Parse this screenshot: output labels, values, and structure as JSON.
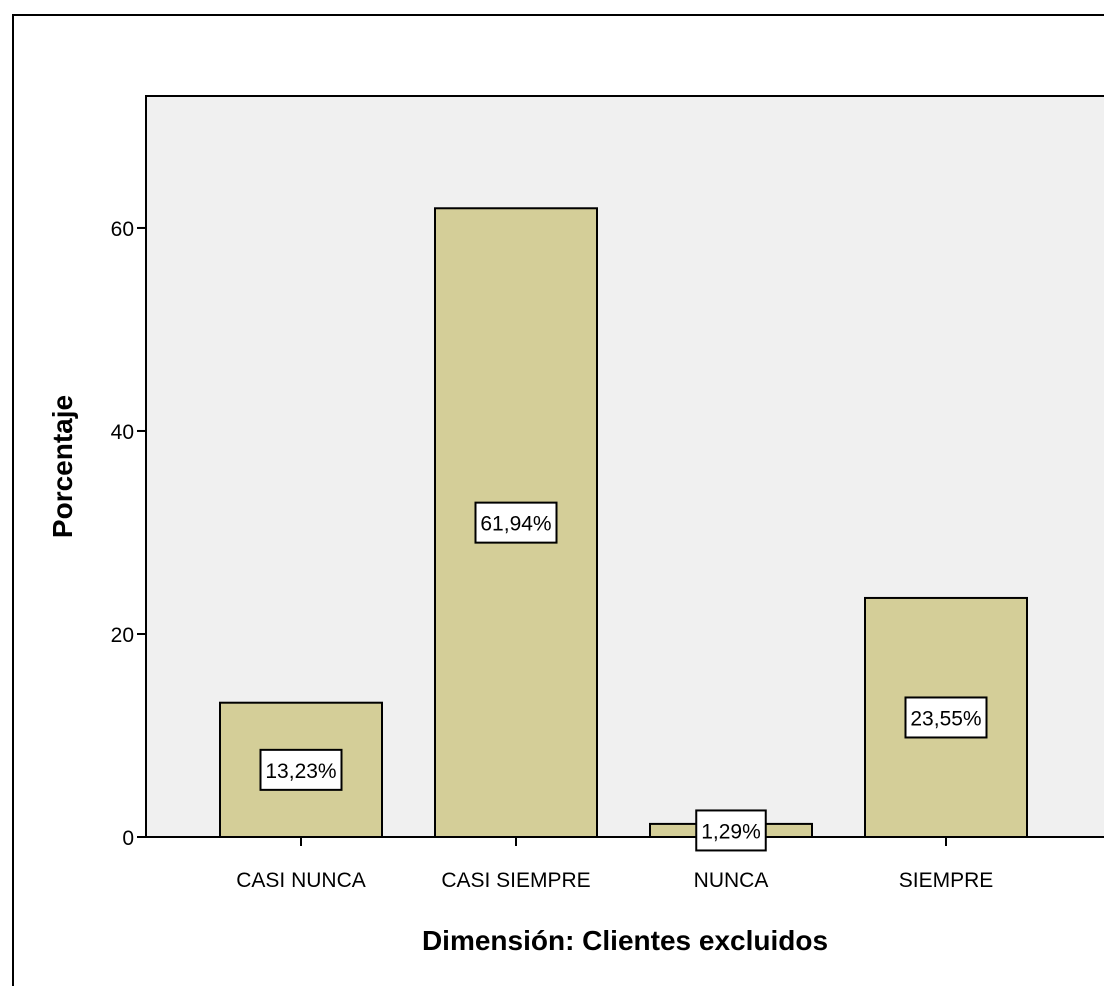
{
  "chart_data": {
    "type": "bar",
    "categories": [
      "CASI NUNCA",
      "CASI SIEMPRE",
      "NUNCA",
      "SIEMPRE"
    ],
    "values": [
      13.23,
      61.94,
      1.29,
      23.55
    ],
    "data_labels": [
      "13,23%",
      "61,94%",
      "1,29%",
      "23,55%"
    ],
    "xlabel": "Dimensión: Clientes excluidos",
    "ylabel": "Porcentaje",
    "ylim": [
      0,
      73
    ],
    "yticks": [
      0,
      20,
      40,
      60
    ],
    "grid": false,
    "colors": {
      "bar_fill": "#d4ce98",
      "plot_background": "#f0f0f0",
      "bar_stroke": "#000000"
    }
  }
}
